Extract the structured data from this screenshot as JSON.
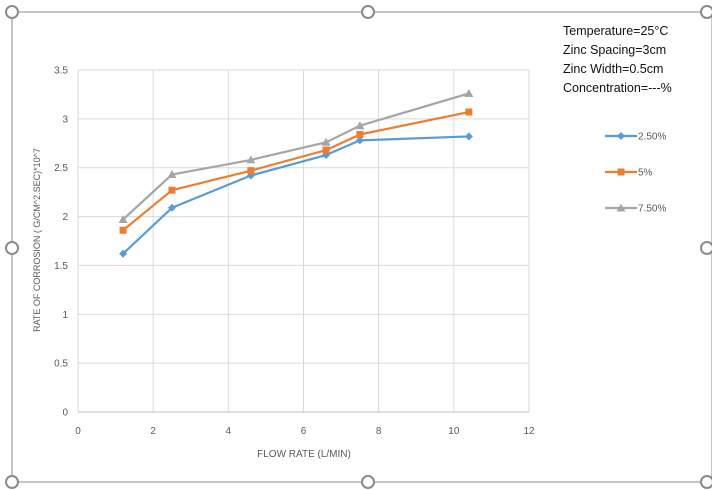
{
  "notes": {
    "temperature": "Temperature=25°C",
    "spacing": "Zinc Spacing=3cm",
    "width": "Zinc Width=0.5cm",
    "concentration": "Concentration=---%"
  },
  "chart_data": {
    "type": "line",
    "xlabel": "FLOW RATE (L/MIN)",
    "ylabel": "RATE OF CORROSION ( G/CM^2.SEC)*10^7",
    "xlim": [
      0,
      12
    ],
    "ylim": [
      0,
      3.5
    ],
    "x_ticks": [
      0,
      2,
      4,
      6,
      8,
      10,
      12
    ],
    "y_ticks": [
      0,
      0.5,
      1,
      1.5,
      2,
      2.5,
      3,
      3.5
    ],
    "grid": "vertical and horizontal",
    "legend_position": "right",
    "x": [
      1.2,
      2.5,
      4.6,
      6.6,
      7.5,
      10.4
    ],
    "series": [
      {
        "name": "2.50%",
        "color": "#5B9BD5",
        "marker": "diamond",
        "values": [
          1.62,
          2.09,
          2.42,
          2.63,
          2.78,
          2.82
        ]
      },
      {
        "name": "5%",
        "color": "#ED7D31",
        "marker": "square",
        "values": [
          1.86,
          2.27,
          2.47,
          2.68,
          2.84,
          3.07
        ]
      },
      {
        "name": "7.50%",
        "color": "#A5A5A5",
        "marker": "triangle",
        "values": [
          1.97,
          2.43,
          2.58,
          2.76,
          2.93,
          3.26
        ]
      }
    ]
  }
}
